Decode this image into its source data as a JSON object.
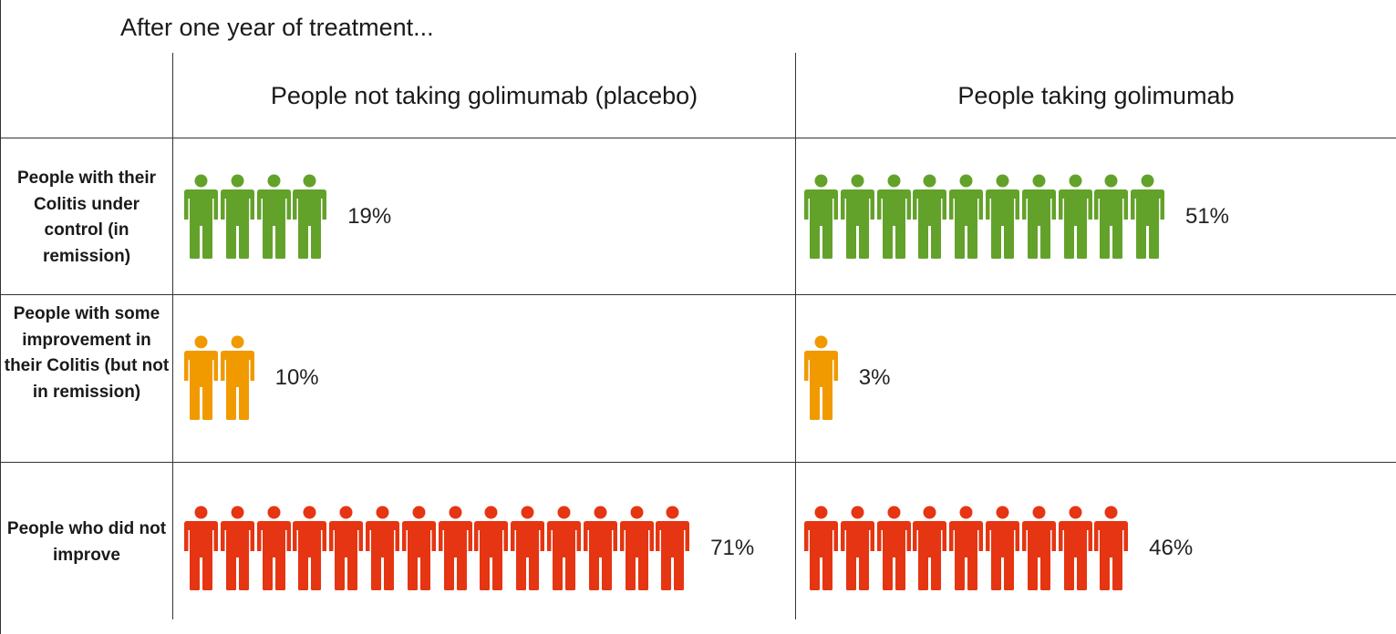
{
  "chart_data": {
    "type": "pictograph",
    "title": "After one year of treatment...",
    "columns": [
      "People not taking golimumab (placebo)",
      "People taking golimumab"
    ],
    "rows": [
      {
        "label": "People with their Colitis under control (in remission)",
        "color": "#63a22a",
        "values": [
          19,
          51
        ],
        "labels": [
          "19%",
          "51%"
        ],
        "icons": [
          4,
          10
        ]
      },
      {
        "label": "People with some improvement in their Colitis (but not in remission)",
        "color": "#f09a00",
        "values": [
          10,
          3
        ],
        "labels": [
          "10%",
          "3%"
        ],
        "icons": [
          2,
          1
        ]
      },
      {
        "label": "People who did not improve",
        "color": "#e63512",
        "values": [
          71,
          46
        ],
        "labels": [
          "71%",
          "46%"
        ],
        "icons": [
          14,
          9
        ]
      }
    ]
  }
}
